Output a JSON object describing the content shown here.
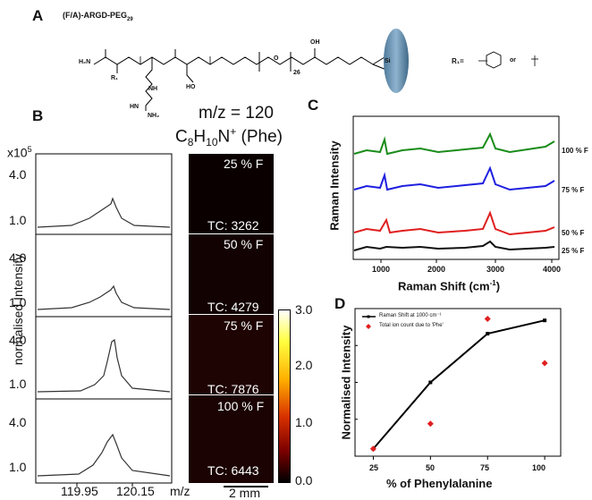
{
  "panel_a": {
    "letter": "A",
    "title": "(F/A)-ARGD-PEG",
    "title_sub": "29",
    "chem_labels": [
      "H₂N",
      "R₁",
      "NH",
      "HN",
      "NH₂",
      "HO",
      "O",
      "26",
      "OH",
      "Si"
    ],
    "r1_label": "R₁=",
    "r1_or": "or"
  },
  "panel_b": {
    "letter": "B",
    "mz_title": "m/z = 120",
    "formula_main": "C",
    "formula_c_sub": "8",
    "formula_h": "H",
    "formula_h_sub": "10",
    "formula_n": "N",
    "formula_sup": "+",
    "formula_tail": " (Phe)",
    "scale_prefix": "x10",
    "scale_exp": "5",
    "ylabel": "normalised Intensity",
    "ticks_y": [
      "4.0",
      "1.0"
    ],
    "x_ticks": [
      "119.95",
      "120.15"
    ],
    "x_unit": "m/z",
    "image_labels": [
      "25 % F",
      "50 % F",
      "75 % F",
      "100 % F"
    ],
    "tc_labels": [
      "TC: 3262",
      "TC: 4279",
      "TC: 7876",
      "TC: 6443"
    ],
    "colorbar_ticks": [
      "3.0",
      "2.0",
      "1.0",
      "0.0"
    ],
    "scale_bar": "2 mm"
  },
  "panel_c": {
    "letter": "C",
    "ylabel": "Raman Intensity",
    "xlabel_main": "Raman Shift (cm",
    "xlabel_sup": "-1",
    "xlabel_end": ")",
    "x_ticks": [
      "1000",
      "2000",
      "3000",
      "4000"
    ],
    "series_labels": [
      "100 % F",
      "75 % F",
      "50 % F",
      "25 % F"
    ],
    "colors": [
      "#1a8c1a",
      "#1f1fe0",
      "#e01f1f",
      "#111111"
    ]
  },
  "chart_data": {
    "type": "line",
    "title": "",
    "xlabel": "% of Phenylalanine",
    "ylabel": "Normalised Intensity",
    "x": [
      25,
      50,
      75,
      100
    ],
    "series": [
      {
        "name": "Raman Shift at 1000 cm⁻¹",
        "values": [
          0.05,
          0.5,
          0.83,
          0.92
        ],
        "color": "#000000"
      },
      {
        "name": "Total ion count due to 'Phe'",
        "values": [
          0.05,
          0.22,
          0.93,
          0.63
        ],
        "color": "#e01f1f"
      }
    ],
    "xlim": [
      17,
      107
    ],
    "ylim": [
      0,
      1
    ],
    "legend": "top-left"
  },
  "panel_d": {
    "letter": "D",
    "x_ticks": [
      "25",
      "50",
      "75",
      "100"
    ]
  }
}
